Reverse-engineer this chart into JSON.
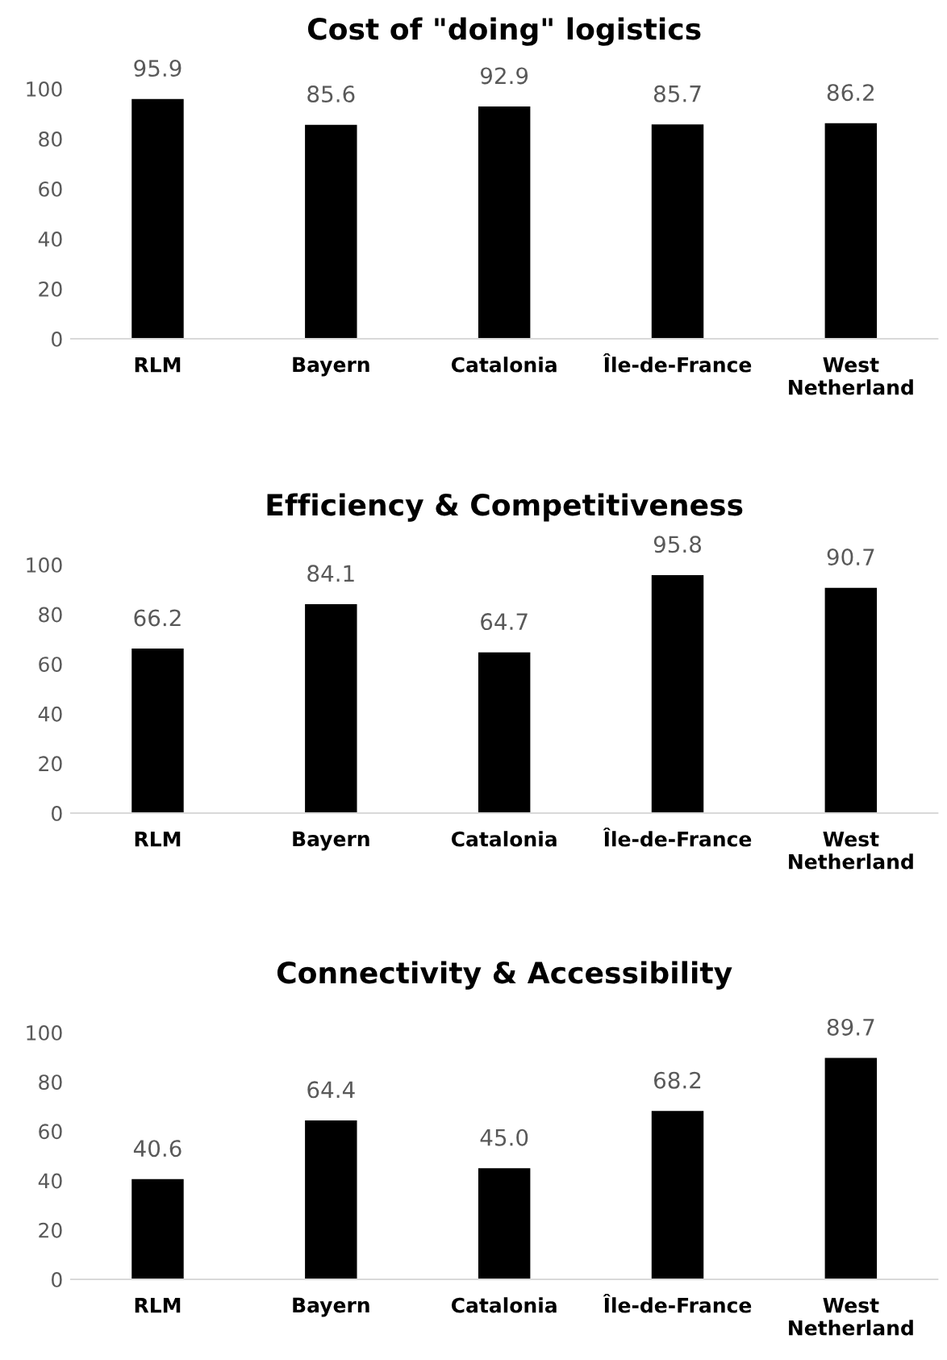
{
  "chart_data": [
    {
      "type": "bar",
      "title": "Cost of \"doing\" logistics",
      "categories": [
        "RLM",
        "Bayern",
        "Catalonia",
        "Île-de-France",
        "West\nNetherland"
      ],
      "values": [
        95.9,
        85.6,
        92.9,
        85.7,
        86.2
      ],
      "color": "#000000",
      "ylim": [
        0,
        100
      ],
      "yticks": [
        0,
        20,
        40,
        60,
        80,
        100
      ],
      "grid": false,
      "data_labels": true
    },
    {
      "type": "bar",
      "title": "Efficiency & Competitiveness",
      "categories": [
        "RLM",
        "Bayern",
        "Catalonia",
        "Île-de-France",
        "West\nNetherland"
      ],
      "values": [
        66.2,
        84.1,
        64.7,
        95.8,
        90.7
      ],
      "color": "#000000",
      "ylim": [
        0,
        100
      ],
      "yticks": [
        0,
        20,
        40,
        60,
        80,
        100
      ],
      "grid": false,
      "data_labels": true
    },
    {
      "type": "bar",
      "title": "Connectivity & Accessibility",
      "categories": [
        "RLM",
        "Bayern",
        "Catalonia",
        "Île-de-France",
        "West\nNetherland"
      ],
      "values": [
        40.6,
        64.4,
        45.0,
        68.2,
        89.7
      ],
      "value_labels": [
        "40.6",
        "64.4",
        "45.0",
        "68.2",
        "89.7"
      ],
      "color": "#000000",
      "ylim": [
        0,
        100
      ],
      "yticks": [
        0,
        20,
        40,
        60,
        80,
        100
      ],
      "grid": false
    }
  ]
}
